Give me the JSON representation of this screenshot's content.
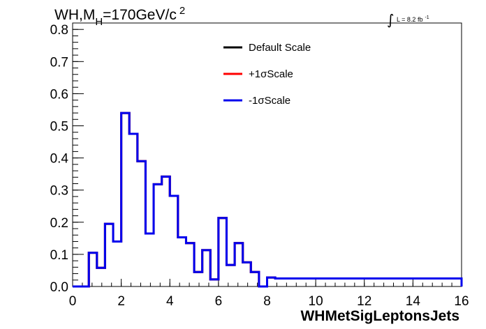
{
  "chart_data": {
    "type": "line",
    "title": {
      "prefix": "WH,M",
      "subscript": "H",
      "value": "=170GeV/c",
      "superscript": "2"
    },
    "lumi": {
      "integral": "∫",
      "text": "L = 8.2 fb",
      "superscript": "-1"
    },
    "xlabel": "WHMetSigLeptonsJets",
    "ylabel": "",
    "xlim": [
      0,
      16
    ],
    "ylim": [
      0,
      0.82
    ],
    "x_ticks": [
      0,
      2,
      4,
      6,
      8,
      10,
      12,
      14,
      16
    ],
    "x_tick_labels": [
      "0",
      "2",
      "4",
      "6",
      "8",
      "10",
      "12",
      "14",
      "16"
    ],
    "y_ticks": [
      0,
      0.1,
      0.2,
      0.3,
      0.4,
      0.5,
      0.6,
      0.7,
      0.8
    ],
    "y_tick_labels": [
      "0.0",
      "0.1",
      "0.2",
      "0.3",
      "0.4",
      "0.5",
      "0.6",
      "0.7",
      "0.8"
    ],
    "legend_position": "top-center",
    "bin_edges": [
      0,
      0.667,
      1.0,
      1.333,
      1.667,
      2.0,
      2.333,
      2.667,
      3.0,
      3.333,
      3.667,
      4.0,
      4.333,
      4.667,
      5.0,
      5.333,
      5.667,
      6.0,
      6.333,
      6.667,
      7.0,
      7.333,
      7.667,
      8.0,
      8.333,
      16
    ],
    "series": [
      {
        "name": "Default Scale",
        "color": "#000000",
        "values": [
          0,
          0.105,
          0.058,
          0.195,
          0.14,
          0.54,
          0.475,
          0.39,
          0.165,
          0.318,
          0.342,
          0.282,
          0.153,
          0.135,
          0.045,
          0.113,
          0.022,
          0.213,
          0.067,
          0.135,
          0.075,
          0.045,
          0,
          0.028,
          0.025,
          0
        ]
      },
      {
        "name": "+1σScale",
        "color": "#ff0000",
        "values": [
          0,
          0.105,
          0.058,
          0.195,
          0.14,
          0.54,
          0.475,
          0.39,
          0.165,
          0.318,
          0.342,
          0.282,
          0.153,
          0.135,
          0.045,
          0.113,
          0.022,
          0.213,
          0.067,
          0.135,
          0.075,
          0.045,
          0,
          0.028,
          0.025,
          0
        ]
      },
      {
        "name": "-1σScale",
        "color": "#0000ee",
        "values": [
          0,
          0.105,
          0.058,
          0.195,
          0.14,
          0.54,
          0.475,
          0.39,
          0.165,
          0.318,
          0.342,
          0.282,
          0.153,
          0.135,
          0.045,
          0.113,
          0.022,
          0.213,
          0.067,
          0.135,
          0.075,
          0.045,
          0,
          0.028,
          0.025,
          0
        ]
      }
    ]
  }
}
